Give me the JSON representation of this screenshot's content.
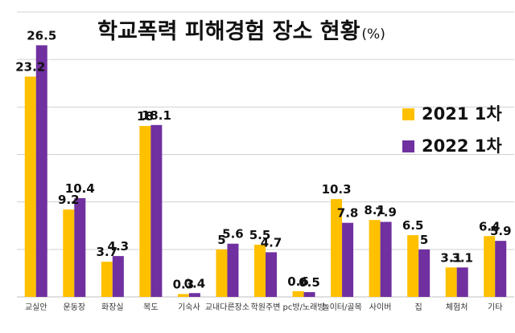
{
  "chart_data": {
    "type": "bar",
    "title": "학교폭력 피해경험 장소 현황",
    "title_unit": "(%)",
    "categories": [
      "교실안",
      "운동장",
      "화장실",
      "복도",
      "기숙사",
      "교내다른장소",
      "학원주변",
      "pc방/노래방",
      "놀이터/골목",
      "사이버",
      "집",
      "체험처",
      "기타"
    ],
    "series": [
      {
        "name": "2021 1차",
        "color": "#FFC000",
        "values": [
          23.2,
          9.2,
          3.7,
          18,
          0.3,
          5,
          5.5,
          0.6,
          10.3,
          8.1,
          6.5,
          3.1,
          6.4
        ]
      },
      {
        "name": "2022 1차",
        "color": "#7030A0",
        "values": [
          26.5,
          10.4,
          4.3,
          18.1,
          0.4,
          5.6,
          4.7,
          0.5,
          7.8,
          7.9,
          5,
          3.1,
          5.9
        ]
      }
    ],
    "value_labels": {
      "2021 1차": [
        "23.2",
        "9.2",
        "3.7",
        "18",
        "0.3",
        "5",
        "5.5",
        "0.6",
        "10.3",
        "8.1",
        "6.5",
        "3.1",
        "6.4"
      ],
      "2022 1차": [
        "26.5",
        "10.4",
        "4.3",
        "18.1",
        "0.4",
        "5.6",
        "4.7",
        "0.5",
        "7.8",
        "7.9",
        "5",
        "3.1",
        "5.9"
      ]
    },
    "ylim": [
      0,
      30
    ],
    "grid": true,
    "legend_position": "right"
  }
}
